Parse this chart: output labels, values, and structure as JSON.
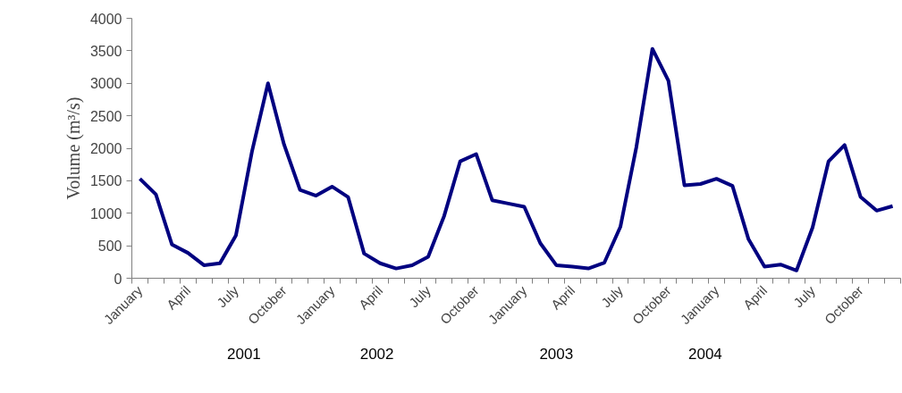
{
  "chart_data": {
    "type": "line",
    "ylabel": "Volume (m³/s)",
    "categories": [
      "January",
      null,
      null,
      "April",
      null,
      null,
      "July",
      null,
      null,
      "October",
      null,
      null,
      "January",
      null,
      null,
      "April",
      null,
      null,
      "July",
      null,
      null,
      "October",
      null,
      null,
      "January",
      null,
      null,
      "April",
      null,
      null,
      "July",
      null,
      null,
      "October",
      null,
      null,
      "January",
      null,
      null,
      "April",
      null,
      null,
      "July",
      null,
      null,
      "October",
      null,
      null
    ],
    "series": [
      {
        "color": "#000080",
        "values": [
          1530,
          1290,
          520,
          390,
          200,
          230,
          660,
          1950,
          3000,
          2060,
          1360,
          1270,
          1410,
          1250,
          380,
          230,
          150,
          200,
          330,
          960,
          1800,
          1910,
          1200,
          1150,
          1100,
          540,
          200,
          180,
          150,
          240,
          790,
          2020,
          3530,
          3040,
          1430,
          1450,
          1530,
          1420,
          600,
          180,
          210,
          120,
          780,
          1800,
          2050,
          1250,
          1040,
          1110
        ]
      }
    ],
    "ylim": [
      0,
      4000
    ],
    "yticks": [
      0,
      500,
      1000,
      1500,
      2000,
      2500,
      3000,
      3500,
      4000
    ],
    "annotations": [
      "2001",
      "2002",
      "2003",
      "2004"
    ],
    "grid": false,
    "marker": "none",
    "line_style": "solid"
  }
}
